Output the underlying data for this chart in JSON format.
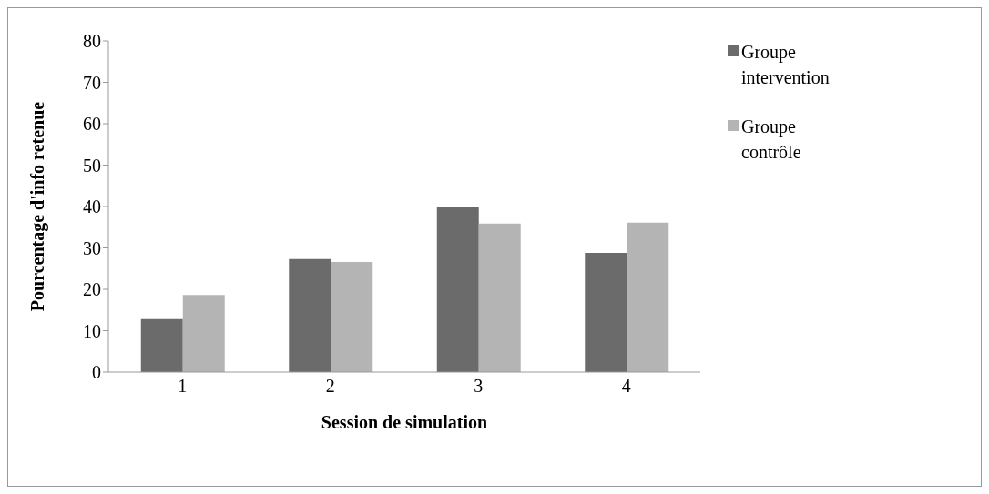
{
  "chart_data": {
    "type": "bar",
    "xlabel": "Session de simulation",
    "ylabel": "Pourcentage d'info retenue",
    "categories": [
      "1",
      "2",
      "3",
      "4"
    ],
    "series": [
      {
        "name": "Groupe intervention",
        "color": "#6b6b6b",
        "values": [
          12.8,
          27.3,
          40.0,
          28.8
        ]
      },
      {
        "name": "Groupe contrôle",
        "color": "#b4b4b4",
        "values": [
          18.6,
          26.6,
          35.9,
          36.1
        ]
      }
    ],
    "ylim": [
      0,
      80
    ],
    "yticks": [
      0,
      10,
      20,
      30,
      40,
      50,
      60,
      70,
      80
    ],
    "grid": false,
    "legend": "top right"
  }
}
